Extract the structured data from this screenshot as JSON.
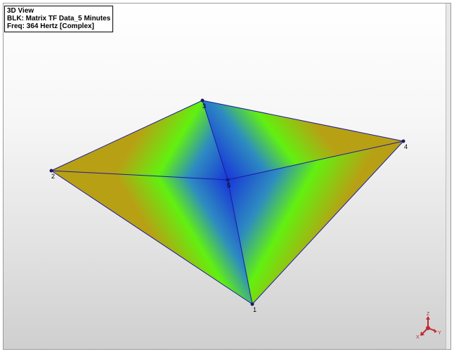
{
  "view": {
    "title": "3D View",
    "block": "BLK: Matrix TF Data_5 Minutes",
    "frequency": "Freq: 364 Hertz [Complex]"
  },
  "colors": {
    "edge": "#1a1aa0",
    "surface_low": "#1a3cd6",
    "surface_mid": "#62f010",
    "surface_high": "#c8a814",
    "node": "#1a1a66",
    "axis_triad": "#c0282e"
  },
  "nodes": [
    {
      "id": "1",
      "label": "1"
    },
    {
      "id": "2",
      "label": "2"
    },
    {
      "id": "3",
      "label": "3"
    },
    {
      "id": "4",
      "label": "4"
    },
    {
      "id": "5",
      "label": "5"
    }
  ],
  "axes": {
    "x_label": "X",
    "y_label": "Y",
    "z_label": "Z",
    "icon": "axis-triad-icon"
  }
}
